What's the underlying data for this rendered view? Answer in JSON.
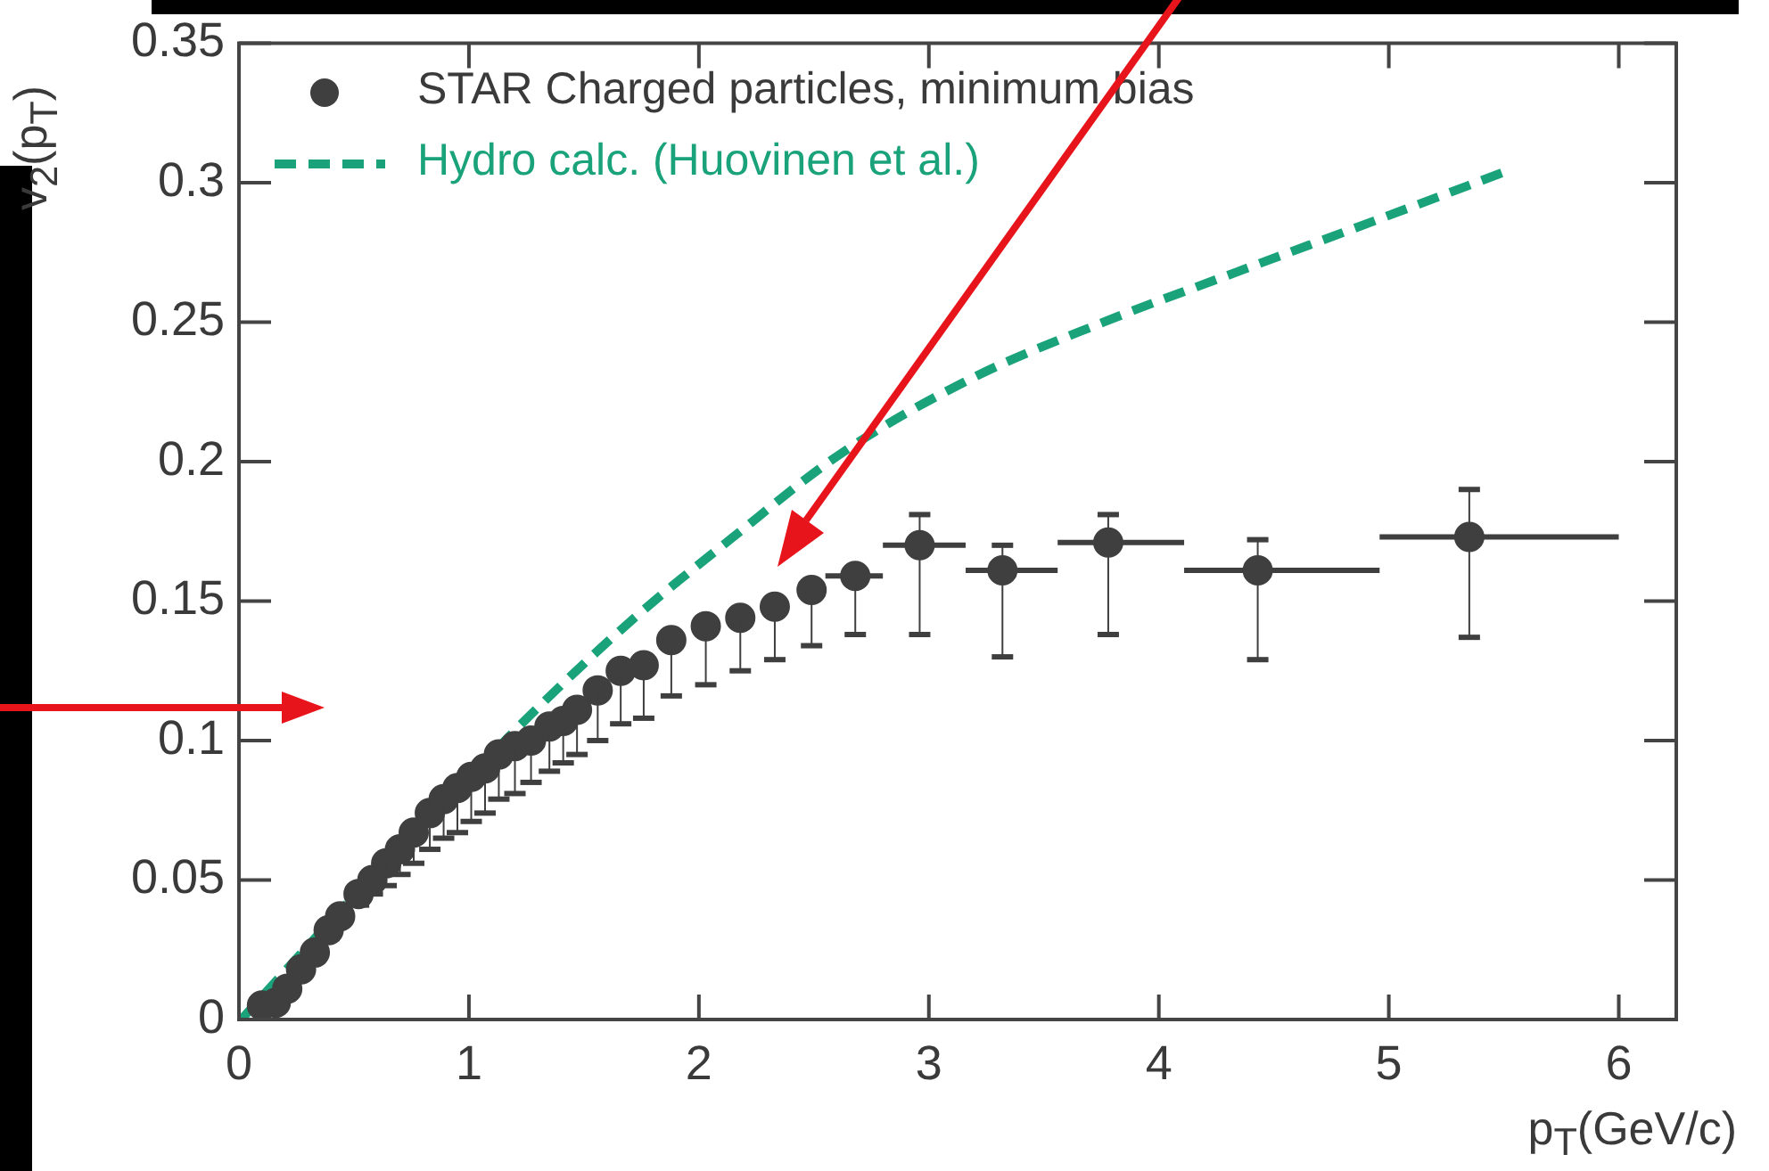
{
  "chart_data": {
    "type": "scatter",
    "xlabel": "p$_{T}$(GeV/c)",
    "ylabel": "v$_{2}$(p$_{T}$)",
    "xlim": [
      0,
      6.25
    ],
    "ylim": [
      0,
      0.35
    ],
    "xticks": [
      0,
      1,
      2,
      3,
      4,
      5,
      6
    ],
    "yticks": [
      0,
      0.05,
      0.1,
      0.15,
      0.2,
      0.25,
      0.3,
      0.35
    ],
    "grid": false,
    "legend": "top left",
    "series": [
      {
        "name": "STAR Charged particles, minimum bias",
        "type": "scatter",
        "marker": "circle",
        "color": "#3f3f3f",
        "x": [
          0.1,
          0.16,
          0.21,
          0.27,
          0.33,
          0.39,
          0.44,
          0.52,
          0.58,
          0.64,
          0.7,
          0.76,
          0.83,
          0.89,
          0.95,
          1.01,
          1.07,
          1.13,
          1.2,
          1.27,
          1.35,
          1.41,
          1.47,
          1.56,
          1.66,
          1.76,
          1.88,
          2.03,
          2.18,
          2.33,
          2.49,
          2.68,
          2.96,
          3.32,
          3.78,
          4.43,
          5.35
        ],
        "values": [
          0.005,
          0.006,
          0.011,
          0.018,
          0.024,
          0.032,
          0.037,
          0.045,
          0.05,
          0.056,
          0.061,
          0.067,
          0.074,
          0.079,
          0.083,
          0.087,
          0.09,
          0.095,
          0.098,
          0.1,
          0.105,
          0.107,
          0.111,
          0.118,
          0.125,
          0.127,
          0.136,
          0.141,
          0.144,
          0.148,
          0.154,
          0.159,
          0.17,
          0.161,
          0.171,
          0.161,
          0.173
        ],
        "errors": [
          null,
          null,
          null,
          null,
          null,
          [
            0.029,
            0.032
          ],
          null,
          [
            0.041,
            0.045
          ],
          [
            0.045,
            0.05
          ],
          [
            0.048,
            0.056
          ],
          [
            0.052,
            0.061
          ],
          [
            0.056,
            0.067
          ],
          [
            0.061,
            0.074
          ],
          [
            0.065,
            0.079
          ],
          [
            0.067,
            0.083
          ],
          [
            0.071,
            0.087
          ],
          [
            0.074,
            0.09
          ],
          [
            0.079,
            0.095
          ],
          [
            0.081,
            0.098
          ],
          [
            0.085,
            0.1
          ],
          [
            0.089,
            0.105
          ],
          [
            0.092,
            0.107
          ],
          [
            0.095,
            0.111
          ],
          [
            0.1,
            0.118
          ],
          [
            0.106,
            0.125
          ],
          [
            0.108,
            0.127
          ],
          [
            0.116,
            0.136
          ],
          [
            0.12,
            0.141
          ],
          [
            0.125,
            0.144
          ],
          [
            0.129,
            0.148
          ],
          [
            0.134,
            0.154
          ],
          [
            0.138,
            0.159
          ],
          [
            0.138,
            0.181
          ],
          [
            0.13,
            0.17
          ],
          [
            0.138,
            0.181
          ],
          [
            0.129,
            0.172
          ],
          [
            0.137,
            0.19
          ]
        ],
        "xerrors": [
          null,
          null,
          null,
          null,
          null,
          null,
          null,
          null,
          null,
          null,
          null,
          null,
          null,
          null,
          null,
          null,
          null,
          null,
          null,
          null,
          null,
          null,
          null,
          null,
          null,
          null,
          null,
          null,
          null,
          null,
          null,
          [
            2.55,
            2.8
          ],
          [
            2.8,
            3.16
          ],
          [
            3.16,
            3.56
          ],
          [
            3.56,
            4.11
          ],
          [
            4.11,
            4.96
          ],
          [
            4.96,
            6.0
          ]
        ]
      },
      {
        "name": "Hydro calc. (Huovinen et al.)",
        "type": "line",
        "line_style": "dashed",
        "color": "#1aa37a",
        "x": [
          0.01,
          0.43,
          0.84,
          1.29,
          1.72,
          2.15,
          2.62,
          3.19,
          3.76,
          4.34,
          4.96,
          5.54
        ],
        "values": [
          0.0,
          0.038,
          0.073,
          0.111,
          0.144,
          0.173,
          0.203,
          0.23,
          0.25,
          0.268,
          0.287,
          0.305
        ]
      }
    ]
  }
}
